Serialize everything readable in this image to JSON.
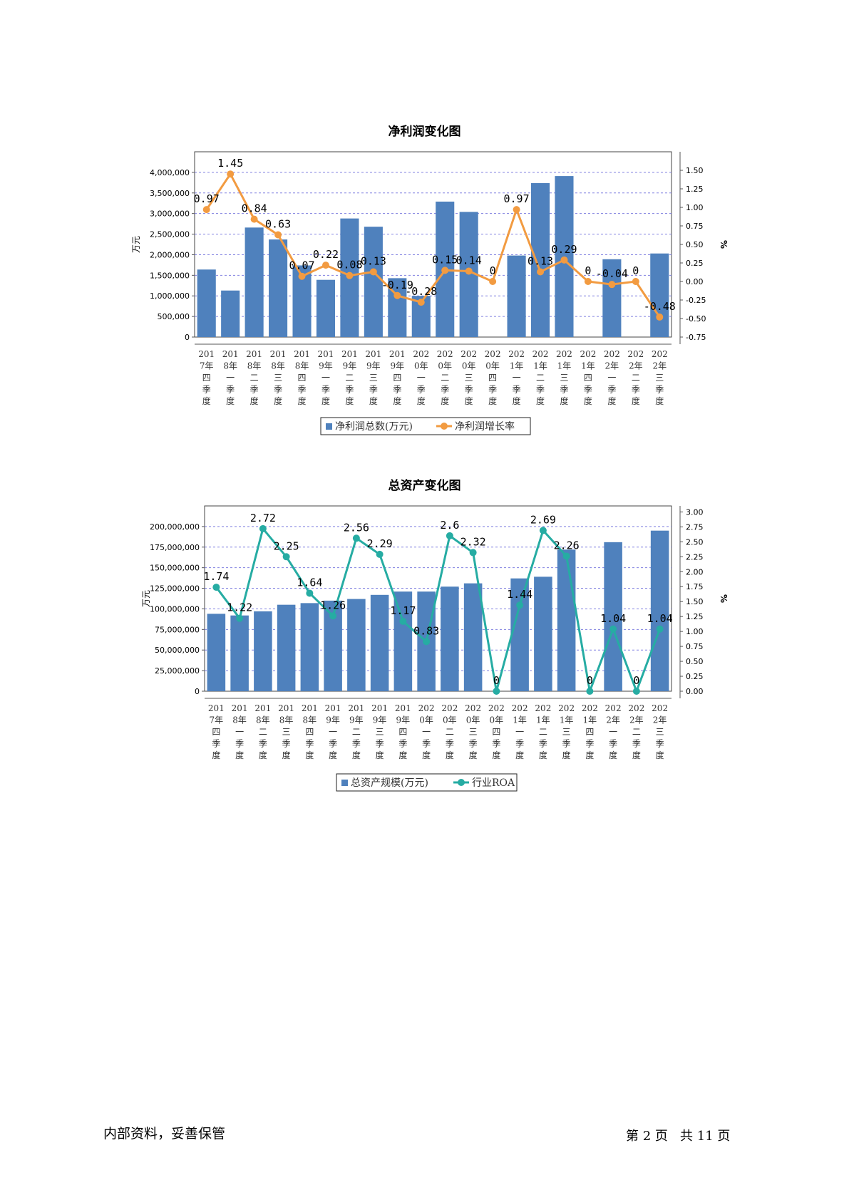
{
  "chart_data": [
    {
      "type": "bar",
      "title": "净利润变化图",
      "ylabel": "万元",
      "y2label": "%",
      "ylim": [
        0,
        4500000
      ],
      "y2lim": [
        -0.75,
        1.75
      ],
      "yticks": [
        "0",
        "500,000",
        "1,000,000",
        "1,500,000",
        "2,000,000",
        "2,500,000",
        "3,000,000",
        "3,500,000",
        "4,000,000"
      ],
      "y2ticks": [
        "-0.75",
        "-0.50",
        "-0.25",
        "0.00",
        "0.25",
        "0.50",
        "0.75",
        "1.00",
        "1.25",
        "1.50"
      ],
      "grid": true,
      "legend_placement": "bottom",
      "categories": [
        "2017年四季度",
        "2018年一季度",
        "2018年二季度",
        "2018年三季度",
        "2018年四季度",
        "2019年一季度",
        "2019年二季度",
        "2019年三季度",
        "2019年四季度",
        "2020年一季度",
        "2020年二季度",
        "2020年三季度",
        "2020年四季度",
        "2021年一季度",
        "2021年二季度",
        "2021年三季度",
        "2021年四季度",
        "2022年一季度",
        "2022年二季度",
        "2022年三季度"
      ],
      "series": [
        {
          "name": "净利润总数(万元)",
          "kind": "bar",
          "axis": "left",
          "values": [
            1640000,
            1130000,
            2660000,
            2370000,
            1740000,
            1390000,
            2880000,
            2680000,
            1430000,
            1000000,
            3290000,
            3040000,
            0,
            1980000,
            3740000,
            3910000,
            0,
            1890000,
            0,
            2030000
          ]
        },
        {
          "name": "净利润增长率",
          "kind": "line",
          "axis": "right",
          "values": [
            0.97,
            1.45,
            0.84,
            0.63,
            0.07,
            0.22,
            0.08,
            0.13,
            -0.19,
            -0.28,
            0.15,
            0.14,
            0,
            0.97,
            0.13,
            0.29,
            0,
            -0.04,
            0,
            -0.48
          ],
          "labels": [
            "0.97",
            "1.45",
            "0.84",
            "0.63",
            "0.07",
            "0.22",
            "0.08",
            "0.13",
            "-0.19",
            "-0.28",
            "0.15",
            "0.14",
            "0",
            "0.97",
            "0.13",
            "0.29",
            "0",
            "-0.04",
            "0",
            "-0.48"
          ]
        }
      ],
      "colors": {
        "bar": "#4f81bd",
        "line": "#f29b41"
      }
    },
    {
      "type": "bar",
      "title": "总资产变化图",
      "ylabel": "万元",
      "y2label": "%",
      "ylim": [
        0,
        225000000
      ],
      "y2lim": [
        0,
        3.1
      ],
      "yticks": [
        "0",
        "25,000,000",
        "50,000,000",
        "75,000,000",
        "100,000,000",
        "125,000,000",
        "150,000,000",
        "175,000,000",
        "200,000,000"
      ],
      "y2ticks": [
        "0.00",
        "0.25",
        "0.50",
        "0.75",
        "1.00",
        "1.25",
        "1.50",
        "1.75",
        "2.00",
        "2.25",
        "2.50",
        "2.75",
        "3.00"
      ],
      "grid": true,
      "legend_placement": "bottom",
      "categories": [
        "2017年四季度",
        "2018年一季度",
        "2018年二季度",
        "2018年三季度",
        "2018年四季度",
        "2019年一季度",
        "2019年二季度",
        "2019年三季度",
        "2019年四季度",
        "2020年一季度",
        "2020年二季度",
        "2020年三季度",
        "2020年四季度",
        "2021年一季度",
        "2021年二季度",
        "2021年三季度",
        "2021年四季度",
        "2022年一季度",
        "2022年二季度",
        "2022年三季度"
      ],
      "series": [
        {
          "name": "总资产规模(万元)",
          "kind": "bar",
          "axis": "left",
          "values": [
            94000000,
            92000000,
            97000000,
            105000000,
            107000000,
            110000000,
            112000000,
            117000000,
            121000000,
            121000000,
            127000000,
            131000000,
            0,
            137000000,
            139000000,
            172000000,
            0,
            181000000,
            0,
            195000000
          ]
        },
        {
          "name": "行业ROA",
          "kind": "line",
          "axis": "right",
          "values": [
            1.74,
            1.22,
            2.72,
            2.25,
            1.64,
            1.26,
            2.56,
            2.29,
            1.17,
            0.83,
            2.6,
            2.32,
            0,
            1.44,
            2.69,
            2.26,
            0,
            1.04,
            0,
            1.04
          ],
          "labels": [
            "1.74",
            "1.22",
            "2.72",
            "2.25",
            "1.64",
            "1.26",
            "2.56",
            "2.29",
            "1.17",
            "0.83",
            "2.6",
            "2.32",
            "0",
            "1.44",
            "2.69",
            "2.26",
            "0",
            "1.04",
            "0",
            "1.04"
          ]
        }
      ],
      "colors": {
        "bar": "#4f81bd",
        "line": "#26aca3"
      }
    }
  ],
  "footer": {
    "left": "内部资料，妥善保管",
    "right": "第 2 页   共 11 页"
  }
}
